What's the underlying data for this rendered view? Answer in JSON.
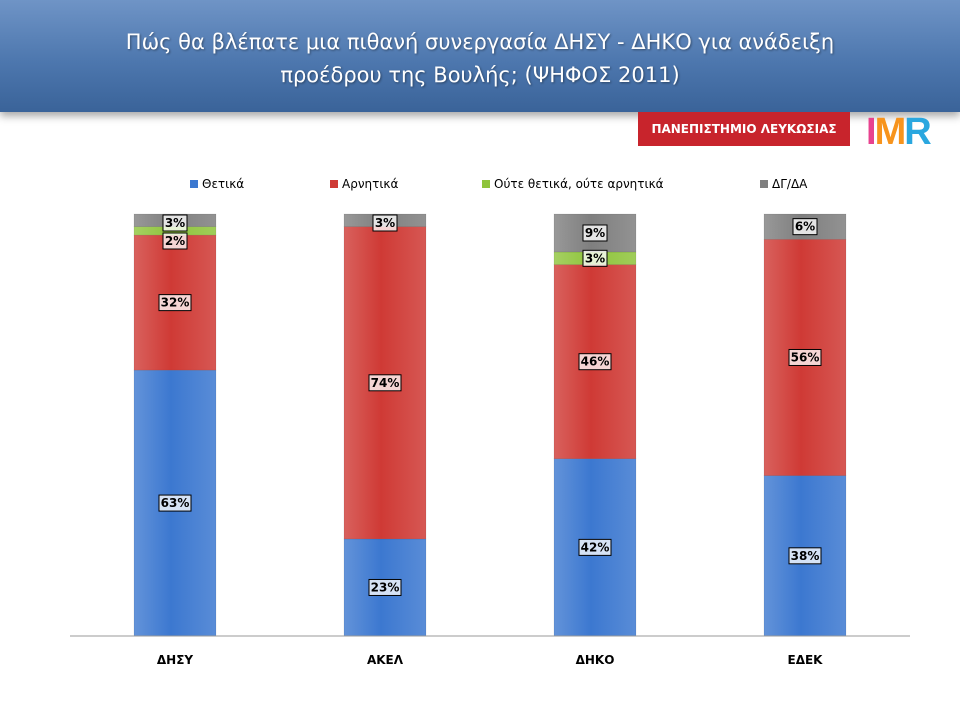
{
  "slide": {
    "title_line1": "Πώς θα βλέπατε μια πιθανή συνεργασία ΔΗΣΥ - ΔΗΚΟ για ανάδειξη",
    "title_line2": "προέδρου της Βουλής; (ΨΗΦΟΣ 2011)",
    "university_badge": "ΠΑΝΕΠΙΣΤΗΜΙΟ ΛΕΥΚΩΣΙΑΣ",
    "logo_text": "IMR",
    "logo_colors": [
      "#e8428f",
      "#f7941d",
      "#2aa7df"
    ]
  },
  "chart_data": {
    "type": "bar",
    "stacked": true,
    "percent_stacked": true,
    "categories": [
      "ΔΗΣΥ",
      "ΑΚΕΛ",
      "ΔΗΚΟ",
      "ΕΔΕΚ"
    ],
    "series": [
      {
        "name": "Θετικά",
        "color": "#3c78d0",
        "values": [
          63,
          23,
          42,
          38
        ]
      },
      {
        "name": "Αρνητικά",
        "color": "#cf3a35",
        "values": [
          32,
          74,
          46,
          56
        ]
      },
      {
        "name": "Ούτε θετικά, ούτε αρνητικά",
        "color": "#8fc43c",
        "values": [
          2,
          0,
          3,
          0
        ]
      },
      {
        "name": "ΔΓ/ΔΑ",
        "color": "#7f7f7f",
        "values": [
          3,
          3,
          9,
          6
        ]
      }
    ],
    "ylim": [
      0,
      100
    ],
    "grid": false,
    "legend_position": "top",
    "label_format": "{v}%"
  }
}
